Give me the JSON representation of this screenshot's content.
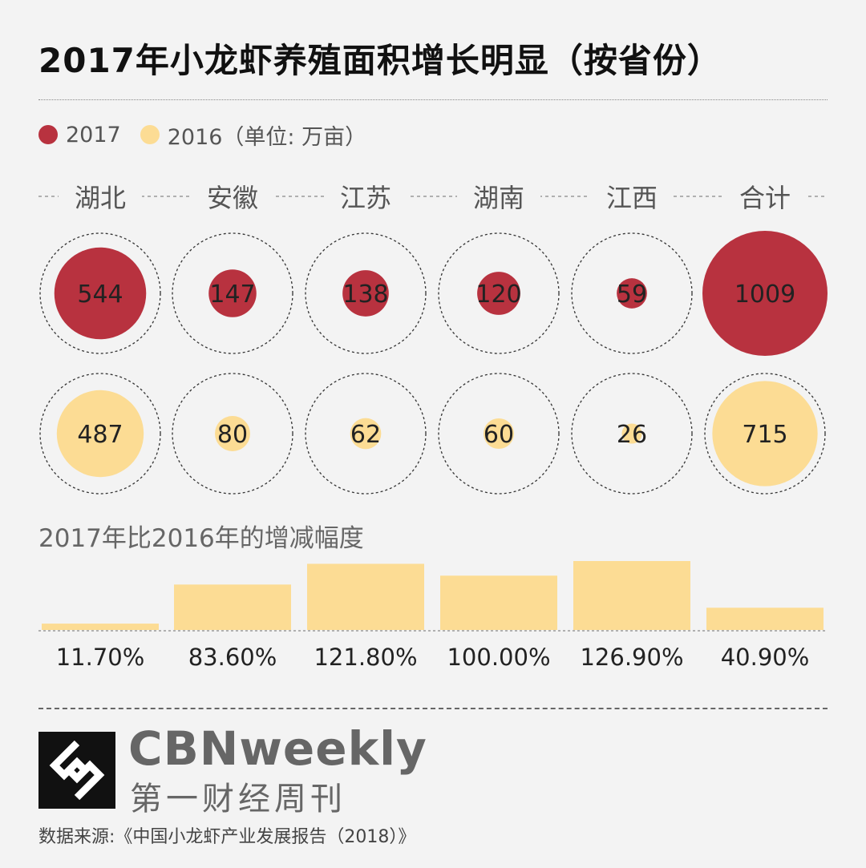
{
  "title": "2017年小龙虾养殖面积增长明显（按省份）",
  "legend": {
    "item_2017": "2017",
    "item_2016": "2016（单位: 万亩）",
    "color_2017": "#b8323f",
    "color_2016": "#fcdc94"
  },
  "chart_data": [
    {
      "type": "bubble",
      "unit": "万亩",
      "categories": [
        "湖北",
        "安徽",
        "江苏",
        "湖南",
        "江西",
        "合计"
      ],
      "series": [
        {
          "name": "2017",
          "values": [
            544,
            147,
            138,
            120,
            59,
            1009
          ],
          "color": "#b8323f"
        },
        {
          "name": "2016",
          "values": [
            487,
            80,
            62,
            60,
            26,
            715
          ],
          "color": "#fcdc94"
        }
      ]
    },
    {
      "type": "bar",
      "title": "2017年比2016年的增减幅度",
      "categories": [
        "湖北",
        "安徽",
        "江苏",
        "湖南",
        "江西",
        "合计"
      ],
      "values": [
        11.7,
        83.6,
        121.8,
        100.0,
        126.9,
        40.9
      ],
      "labels": [
        "11.70%",
        "83.60%",
        "121.80%",
        "100.00%",
        "126.90%",
        "40.90%"
      ],
      "ylim": [
        0,
        126.9
      ],
      "color": "#fcdc94"
    }
  ],
  "brand": {
    "name_en": "CBNweekly",
    "name_cn": "第一财经周刊"
  },
  "source": "数据来源:《中国小龙虾产业发展报告（2018）》"
}
